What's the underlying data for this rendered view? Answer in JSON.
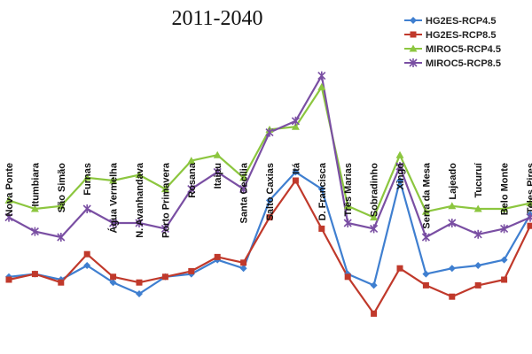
{
  "chart_data": {
    "type": "line",
    "title": "2011-2040",
    "xlabel": "",
    "ylabel": "",
    "ylim": [
      0,
      100
    ],
    "grid": false,
    "legend_position": "top-right",
    "categories": [
      "Nova Ponte",
      "Itumbiara",
      "São Simão",
      "Furnas",
      "Água Vermelha",
      "N. Avanhandava",
      "Porto Primavera",
      "Rosana",
      "Itaipu",
      "Santa Cecília",
      "Salto Caxias",
      "Itá",
      "D. Francisca",
      "Três Marias",
      "Sobradinho",
      "Xingó",
      "Serra da Mesa",
      "Lajeado",
      "Tucuruí",
      "Belo Monte",
      "Teles Pires"
    ],
    "series": [
      {
        "name": "HG2ES-RCP4.5",
        "color": "#3f7fd0",
        "marker": "diamond",
        "values": [
          21,
          22,
          20,
          25,
          19,
          15,
          21,
          22,
          27,
          24,
          48,
          58,
          52,
          22,
          18,
          55,
          22,
          24,
          25,
          27,
          43
        ]
      },
      {
        "name": "HG2ES-RCP8.5",
        "color": "#c0392b",
        "marker": "square",
        "values": [
          20,
          22,
          19,
          29,
          21,
          19,
          21,
          23,
          28,
          26,
          42,
          55,
          38,
          21,
          8,
          24,
          18,
          14,
          18,
          20,
          39
        ]
      },
      {
        "name": "MIROC5-RCP4.5",
        "color": "#8cc63f",
        "marker": "triangle",
        "values": [
          48,
          45,
          46,
          56,
          55,
          57,
          52,
          62,
          64,
          56,
          73,
          74,
          88,
          46,
          42,
          64,
          44,
          46,
          45,
          45,
          47
        ]
      },
      {
        "name": "MIROC5-RCP8.5",
        "color": "#7a4fa3",
        "marker": "cross",
        "values": [
          42,
          37,
          35,
          45,
          40,
          40,
          38,
          52,
          58,
          52,
          72,
          76,
          92,
          40,
          38,
          60,
          35,
          40,
          36,
          38,
          42
        ]
      }
    ]
  }
}
